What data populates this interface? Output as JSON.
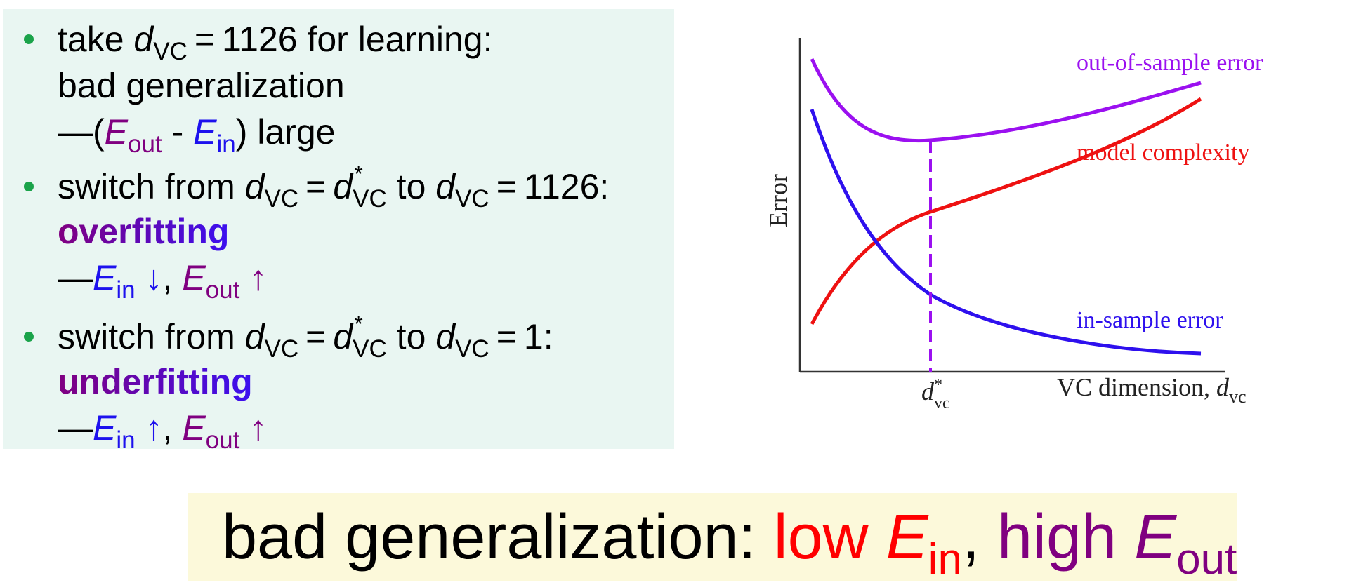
{
  "colors": {
    "green_bullet": "#1aa34a",
    "purple": "#800080",
    "blue": "#1d11ee",
    "red": "#ff0000",
    "panel_bg": "#e9f6f2",
    "banner_bg": "#fcf9da"
  },
  "bullets": [
    {
      "line1": {
        "pre": "take ",
        "d": "d",
        "vc": "VC",
        "eq": "=",
        "value": "1126",
        "post": " for learning:"
      },
      "line2": "bad generalization",
      "line3": {
        "dash": "—(",
        "E": "E",
        "out": "out",
        "minus": " - ",
        "E2": "E",
        "in": "in",
        "post": ") large"
      }
    },
    {
      "line1": {
        "pre": "switch from ",
        "d": "d",
        "vc": "VC",
        "eq": "=",
        "d2": "d",
        "star": "*",
        "vc2": "VC",
        "mid": " to ",
        "d3": "d",
        "vc3": "VC",
        "eq2": "=",
        "value": "1126:"
      },
      "line2": "overfitting",
      "line3": {
        "dash": "—",
        "E": "E",
        "in": "in",
        "arrow1": " ↓",
        "comma": ", ",
        "E2": "E",
        "out": "out",
        "arrow2": " ↑"
      }
    },
    {
      "line1": {
        "pre": "switch from ",
        "d": "d",
        "vc": "VC",
        "eq": "=",
        "d2": "d",
        "star": "*",
        "vc2": "VC",
        "mid": " to ",
        "d3": "d",
        "vc3": "VC",
        "eq2": "=",
        "value": "1:"
      },
      "line2": "underfitting",
      "line3": {
        "dash": "—",
        "E": "E",
        "in": "in",
        "arrow1": " ↑",
        "comma": ", ",
        "E2": "E",
        "out": "out",
        "arrow2": " ↑"
      }
    }
  ],
  "diagram": {
    "ylabel": "Error",
    "xlabel": "VC dimension, ",
    "xlabel_d": "d",
    "xlabel_sub": "vc",
    "optimum_d": "d",
    "optimum_star": "*",
    "optimum_sub": "vc",
    "curves": [
      {
        "name": "out-of-sample error",
        "color": "#9b10f0"
      },
      {
        "name": "model complexity",
        "color": "#ee1111"
      },
      {
        "name": "in-sample error",
        "color": "#2e10ee"
      }
    ]
  },
  "banner": {
    "pre": "bad generalization: ",
    "low": "low ",
    "E1": "E",
    "in": "in",
    "comma": ", ",
    "high": "high ",
    "E2": "E",
    "out": "out"
  }
}
